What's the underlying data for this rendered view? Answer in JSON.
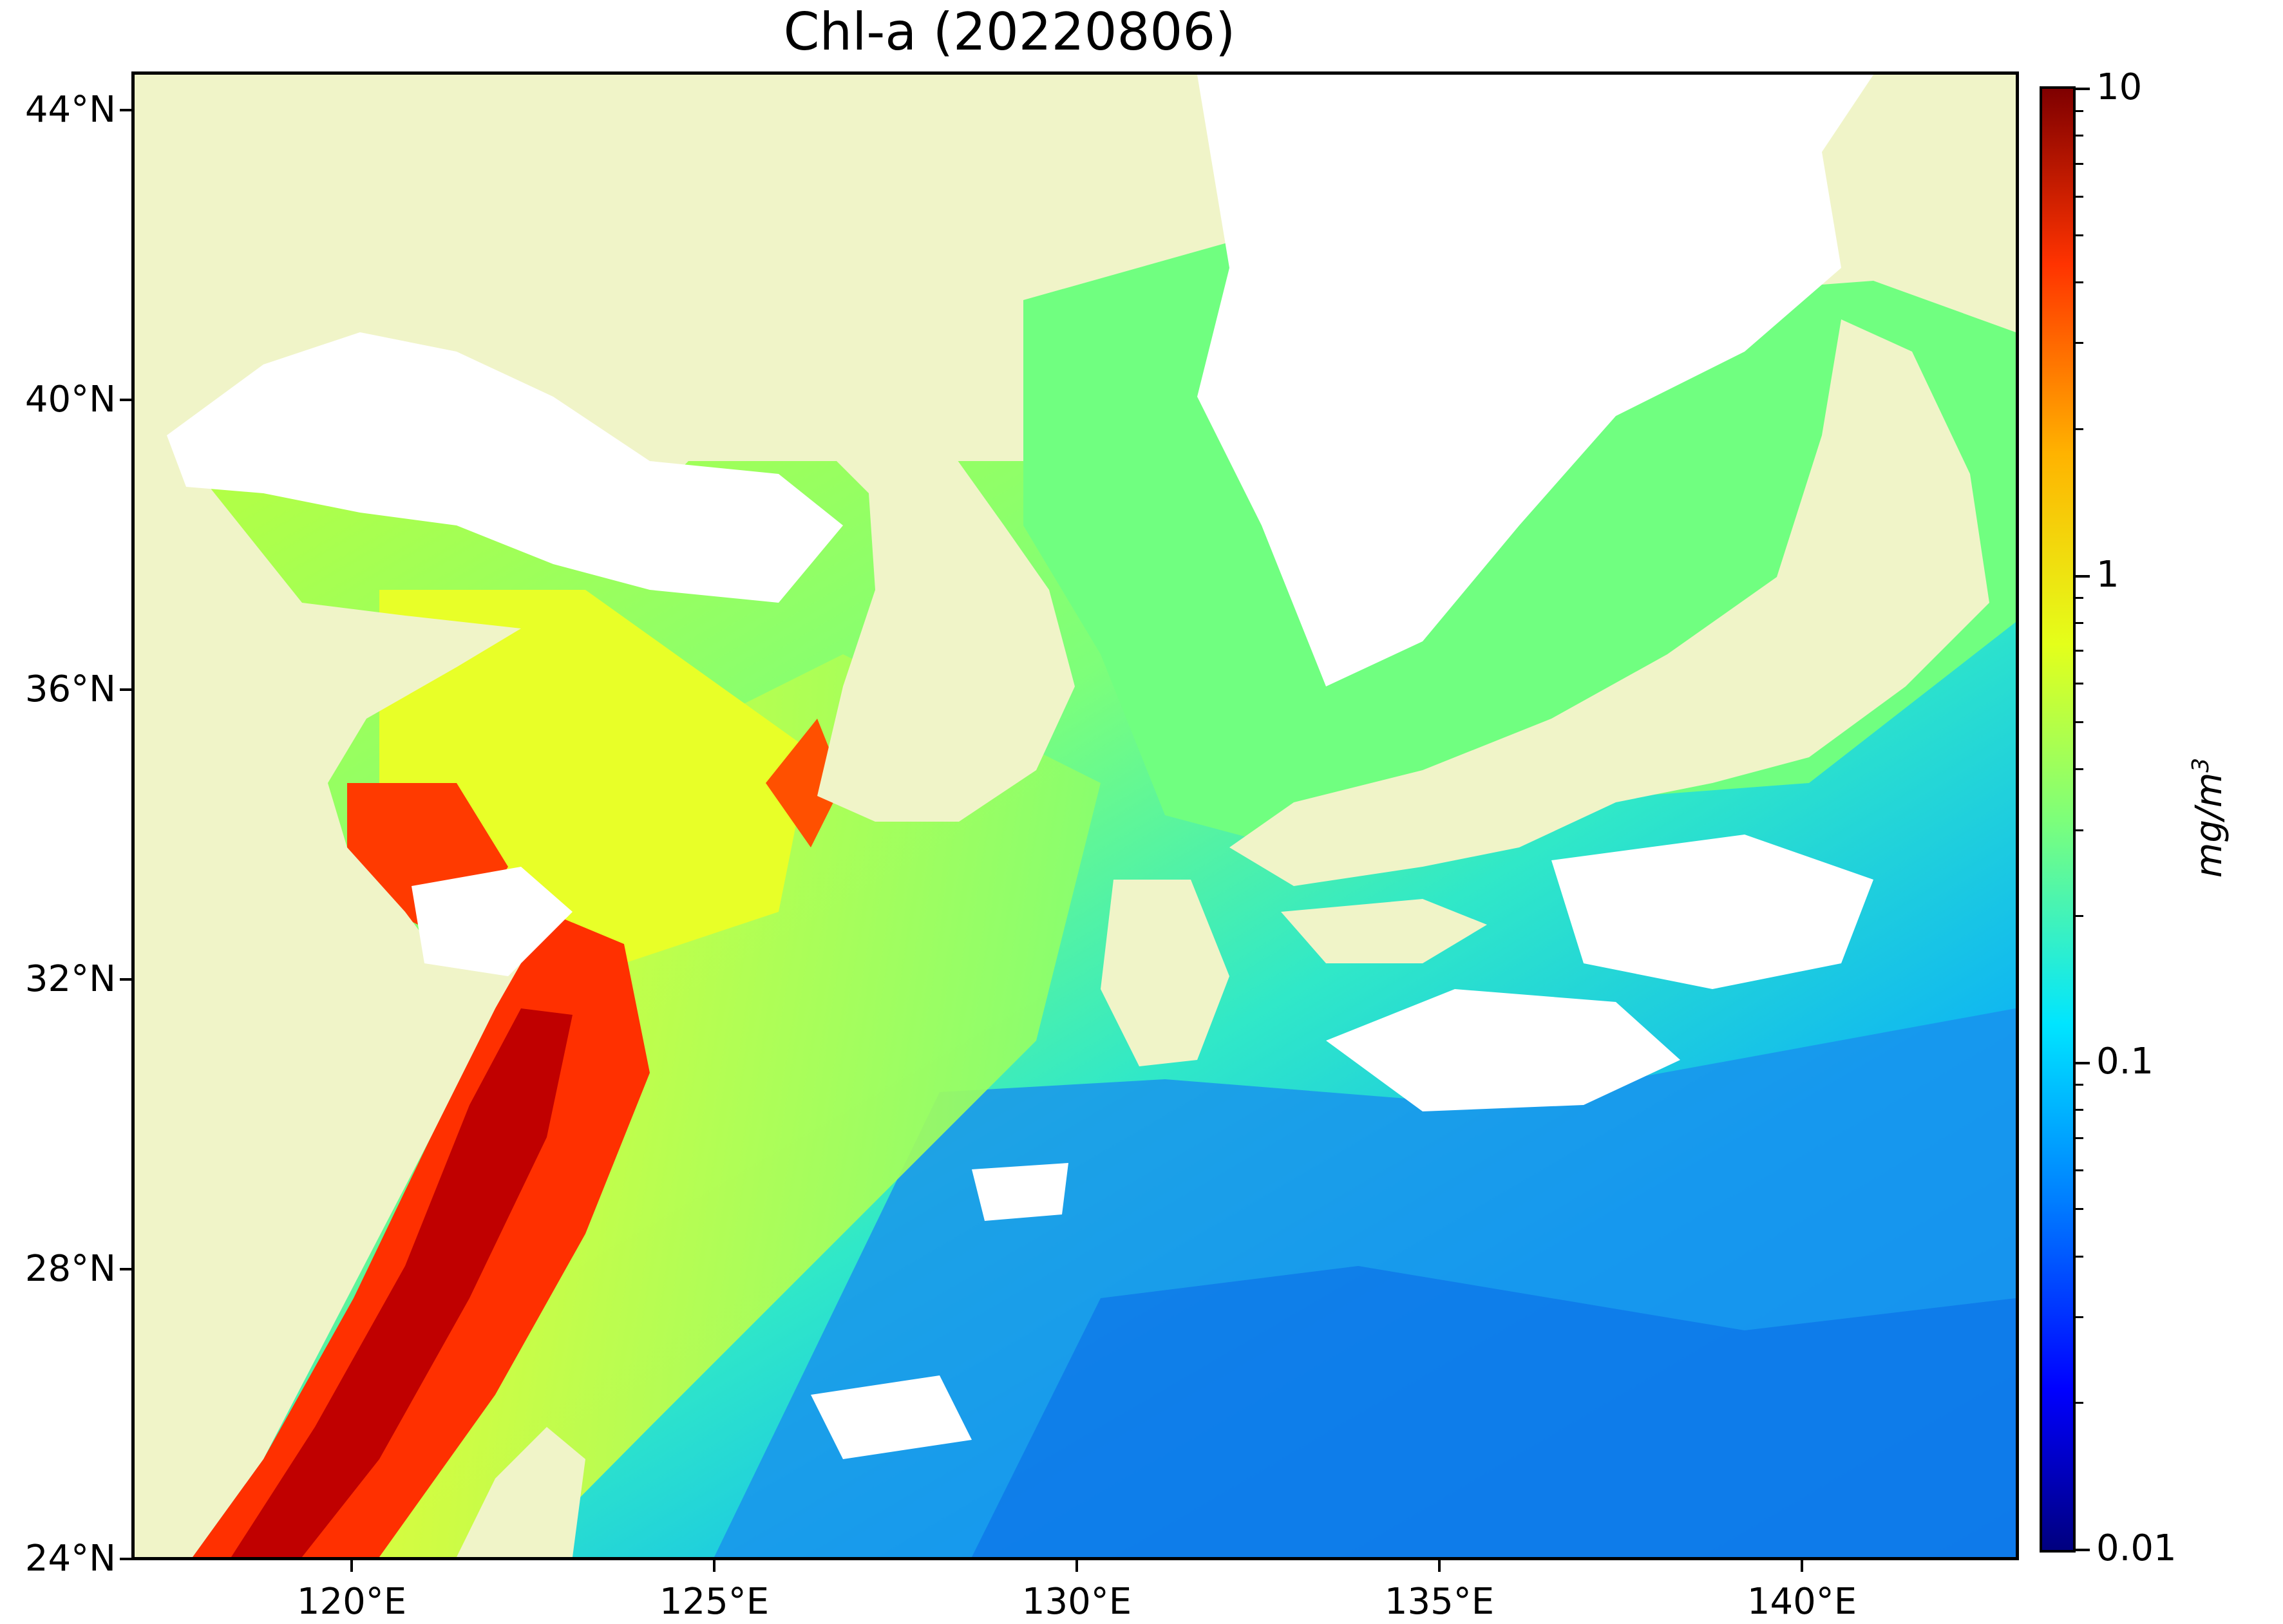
{
  "title": "Chl-a (20220806)",
  "map": {
    "lon_range": [
      117,
      143
    ],
    "lat_range": [
      24,
      44.5
    ],
    "lat_ticks": [
      "44°N",
      "40°N",
      "36°N",
      "32°N",
      "28°N",
      "24°N"
    ],
    "lon_ticks": [
      "120°E",
      "125°E",
      "130°E",
      "135°E",
      "140°E"
    ],
    "land_color": "#f0f4c8",
    "cloud_color": "#ffffff"
  },
  "colorbar": {
    "scale": "log",
    "range": [
      0.01,
      10
    ],
    "tick_labels": [
      "10",
      "1",
      "0.1",
      "0.01"
    ],
    "unit_base": "mg/m",
    "unit_exp": "3",
    "colormap": "jet"
  }
}
